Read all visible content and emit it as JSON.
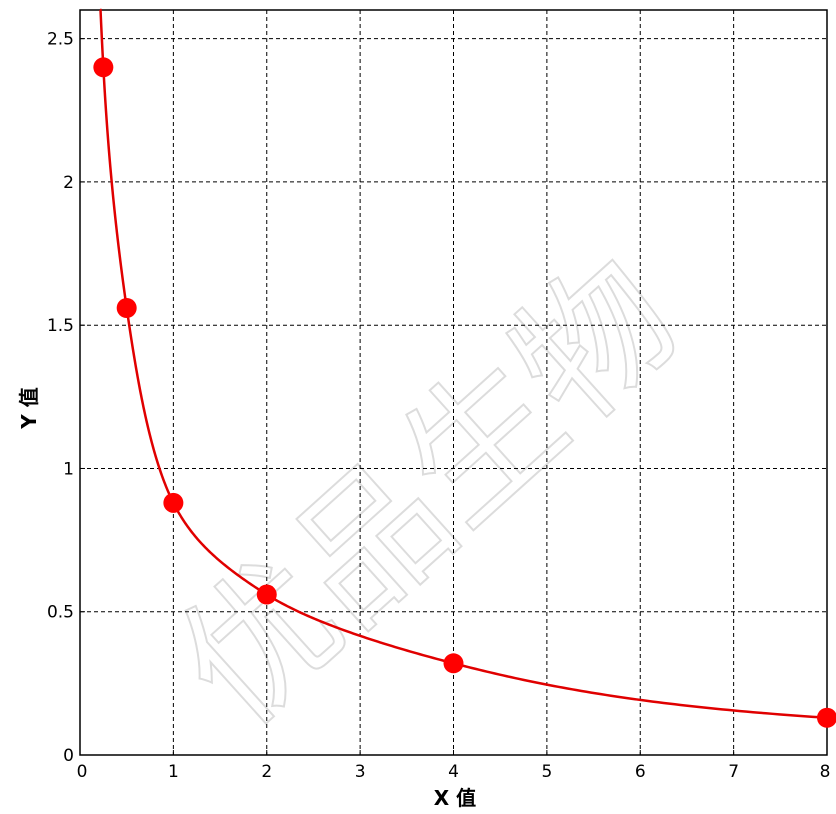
{
  "chart_data": {
    "type": "scatter",
    "title": "",
    "xlabel": "X 值",
    "ylabel": "Y 值",
    "xlim": [
      0,
      8
    ],
    "ylim": [
      0,
      2.6
    ],
    "grid": true,
    "x_ticks": [
      "0",
      "1",
      "2",
      "3",
      "4",
      "5",
      "6",
      "7",
      "8"
    ],
    "y_ticks": [
      "0",
      "0.5",
      "1",
      "1.5",
      "2",
      "2.5"
    ],
    "series": [
      {
        "points": [
          {
            "x": 0.25,
            "y": 2.4
          },
          {
            "x": 0.5,
            "y": 1.56
          },
          {
            "x": 1,
            "y": 0.88
          },
          {
            "x": 2,
            "y": 0.56
          },
          {
            "x": 4,
            "y": 0.32
          },
          {
            "x": 8,
            "y": 0.13
          }
        ],
        "color": "#ff0000"
      }
    ],
    "fit_curve": {
      "color": "#e00000"
    }
  },
  "watermark": "优品生物",
  "colors": {
    "curve": "#e00000",
    "points": "#ff0000",
    "grid": "#000000"
  }
}
